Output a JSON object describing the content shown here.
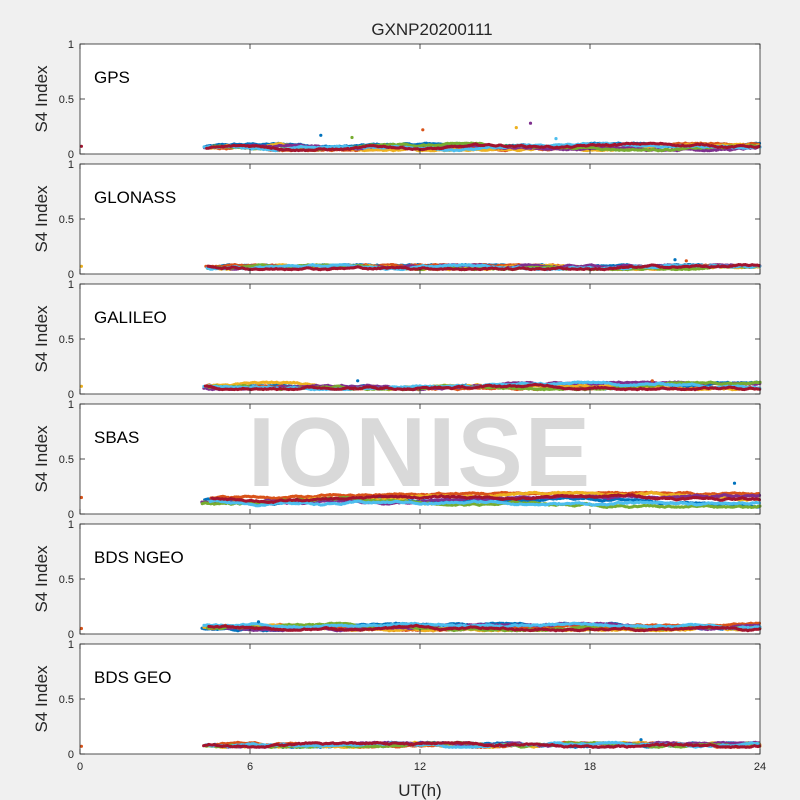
{
  "title": "GXNP20200111",
  "watermark": "IONISE",
  "xlabel": "UT(h)",
  "ylabel": "S4 Index",
  "colors": [
    "#0072BD",
    "#D95319",
    "#EDB120",
    "#7E2F8E",
    "#77AC30",
    "#4DBEEE",
    "#A2142F"
  ],
  "chart_data": {
    "type": "scatter",
    "xlim": [
      0,
      24
    ],
    "ylim": [
      0,
      1
    ],
    "xticks": [
      0,
      6,
      12,
      18,
      24
    ],
    "yticks": [
      0,
      0.5,
      1
    ],
    "xtick_labels": [
      "0",
      "6",
      "12",
      "18",
      "24"
    ],
    "ytick_labels": [
      "0",
      "0.5",
      "1"
    ],
    "grid": false,
    "data_start_hour": 4.3,
    "panels": [
      {
        "label": "GPS",
        "baseline": 0.06,
        "spread": 0.03,
        "outliers": [
          [
            8.5,
            0.17
          ],
          [
            12.1,
            0.22
          ],
          [
            15.4,
            0.24
          ],
          [
            15.9,
            0.28
          ],
          [
            9.6,
            0.15
          ],
          [
            16.8,
            0.14
          ],
          [
            0.05,
            0.07
          ]
        ]
      },
      {
        "label": "GLONASS",
        "baseline": 0.06,
        "spread": 0.02,
        "outliers": [
          [
            21.0,
            0.13
          ],
          [
            21.4,
            0.12
          ],
          [
            0.05,
            0.07
          ]
        ]
      },
      {
        "label": "GALILEO",
        "baseline": 0.07,
        "spread": 0.03,
        "outliers": [
          [
            9.8,
            0.12
          ],
          [
            20.2,
            0.12
          ],
          [
            0.05,
            0.07
          ]
        ]
      },
      {
        "label": "SBAS",
        "baseline": 0.12,
        "spread": 0.06,
        "outliers": [
          [
            23.1,
            0.28
          ],
          [
            0.05,
            0.15
          ]
        ]
      },
      {
        "label": "BDS NGEO",
        "baseline": 0.06,
        "spread": 0.03,
        "outliers": [
          [
            6.3,
            0.11
          ],
          [
            0.05,
            0.05
          ]
        ]
      },
      {
        "label": "BDS GEO",
        "baseline": 0.08,
        "spread": 0.02,
        "outliers": [
          [
            19.8,
            0.13
          ],
          [
            0.05,
            0.07
          ]
        ]
      }
    ]
  }
}
